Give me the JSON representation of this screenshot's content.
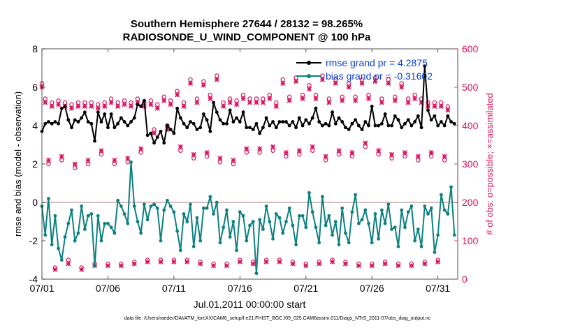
{
  "chart_data": {
    "type": "line",
    "title_line1": "Southern Hemisphere 27644 / 28132 = 98.265%",
    "title_line2": "RADIOSONDE_U_WIND_COMPONENT @ 100 hPa",
    "xlabel": "Jul.01,2011 00:00:00 start",
    "ylabel_left": "rmse and bias (model - observation)",
    "ylabel_right": "# of obs: o=possible; ×=assimilated",
    "footer": "data file: /Users/raeder/DAI/ATM_forcXX/CAM6_setup/f.e21.FHIST_BGC.f09_025.CAM6assim.011/Diags_NTrS_2011-07/obs_diag_output.nc",
    "xlim": [
      0,
      31.5
    ],
    "ylim_left": [
      -4,
      8
    ],
    "ylim_right": [
      0,
      600
    ],
    "x_ticks": [
      0,
      5,
      10,
      15,
      20,
      25,
      30
    ],
    "x_tick_labels": [
      "07/01",
      "07/06",
      "07/11",
      "07/16",
      "07/21",
      "07/26",
      "07/31"
    ],
    "y_ticks_left": [
      -4,
      -2,
      0,
      2,
      4,
      6,
      8
    ],
    "y_tick_labels_left": [
      "-4",
      "-2",
      "0",
      "2",
      "4",
      "6",
      "8"
    ],
    "y_ticks_right": [
      0,
      100,
      200,
      300,
      400,
      500,
      600
    ],
    "y_tick_labels_right": [
      "0",
      "100",
      "200",
      "300",
      "400",
      "500",
      "600"
    ],
    "colors": {
      "rmse": "#000000",
      "bias": "#0d8080",
      "obs": "#d6135e",
      "zero_line": "#c8a8a8",
      "legend_text": "#0a3fd6"
    },
    "legend": {
      "location": "top-right",
      "rmse_label": "rmse grand pr = 4.2875",
      "bias_label": "bias grand pr = -0.31602"
    },
    "x": [
      0.0,
      0.25,
      0.5,
      0.75,
      1.0,
      1.25,
      1.5,
      1.75,
      2.0,
      2.25,
      2.5,
      2.75,
      3.0,
      3.25,
      3.5,
      3.75,
      4.0,
      4.25,
      4.5,
      4.75,
      5.0,
      5.25,
      5.5,
      5.75,
      6.0,
      6.25,
      6.5,
      6.75,
      7.0,
      7.25,
      7.5,
      7.75,
      8.0,
      8.25,
      8.5,
      8.75,
      9.0,
      9.25,
      9.5,
      9.75,
      10.0,
      10.25,
      10.5,
      10.75,
      11.0,
      11.25,
      11.5,
      11.75,
      12.0,
      12.25,
      12.5,
      12.75,
      13.0,
      13.25,
      13.5,
      13.75,
      14.0,
      14.25,
      14.5,
      14.75,
      15.0,
      15.25,
      15.5,
      15.75,
      16.0,
      16.25,
      16.5,
      16.75,
      17.0,
      17.25,
      17.5,
      17.75,
      18.0,
      18.25,
      18.5,
      18.75,
      19.0,
      19.25,
      19.5,
      19.75,
      20.0,
      20.25,
      20.5,
      20.75,
      21.0,
      21.25,
      21.5,
      21.75,
      22.0,
      22.25,
      22.5,
      22.75,
      23.0,
      23.25,
      23.5,
      23.75,
      24.0,
      24.25,
      24.5,
      24.75,
      25.0,
      25.25,
      25.5,
      25.75,
      26.0,
      26.25,
      26.5,
      26.75,
      27.0,
      27.25,
      27.5,
      27.75,
      28.0,
      28.25,
      28.5,
      28.75,
      29.0,
      29.25,
      29.5,
      29.75,
      30.0,
      30.25,
      30.5,
      30.75,
      31.0,
      31.25
    ],
    "rmse": [
      3.7,
      4.1,
      4.2,
      4.1,
      4.2,
      4.1,
      4.9,
      5.0,
      4.3,
      3.9,
      4.3,
      4.2,
      4.4,
      4.7,
      4.2,
      4.1,
      3.2,
      4.7,
      4.2,
      4.6,
      3.9,
      4.6,
      3.9,
      4.1,
      4.4,
      4.2,
      4.0,
      4.2,
      4.4,
      5.1,
      5.0,
      5.3,
      3.5,
      3.6,
      3.1,
      3.4,
      3.7,
      3.1,
      4.0,
      3.8,
      3.6,
      4.9,
      4.4,
      4.1,
      3.9,
      4.2,
      4.1,
      3.8,
      3.9,
      4.6,
      4.3,
      3.7,
      5.2,
      4.7,
      4.3,
      4.1,
      4.1,
      4.8,
      4.2,
      4.4,
      4.2,
      4.7,
      3.9,
      3.9,
      3.8,
      4.1,
      3.6,
      3.9,
      4.4,
      4.0,
      4.2,
      3.9,
      4.2,
      4.2,
      4.2,
      4.0,
      4.2,
      3.9,
      4.4,
      4.0,
      4.3,
      4.1,
      4.4,
      4.9,
      4.2,
      4.0,
      4.1,
      4.0,
      4.7,
      4.1,
      4.4,
      4.2,
      3.9,
      3.8,
      4.1,
      4.3,
      4.0,
      3.8,
      4.2,
      4.0,
      5.0,
      4.0,
      4.0,
      4.1,
      4.6,
      4.0,
      4.0,
      4.5,
      4.3,
      3.9,
      4.1,
      4.3,
      4.0,
      4.2,
      4.5,
      3.9,
      7.1,
      4.8,
      4.3,
      4.5,
      4.0,
      4.2,
      4.0,
      4.5,
      4.2,
      4.1,
      3.9,
      4.4,
      4.1,
      3.8,
      4.2,
      3.9
    ],
    "bias": [
      -0.2,
      -1.7,
      0.2,
      -2.2,
      -0.7,
      -2.4,
      -3.0,
      -1.8,
      -1.1,
      -0.4,
      -2.0,
      -1.6,
      -0.2,
      -1.4,
      -0.7,
      -0.6,
      -3.3,
      -0.7,
      -2.0,
      -1.1,
      -1.1,
      -1.3,
      -1.6,
      0.1,
      -0.2,
      -0.6,
      -1.1,
      2.1,
      -0.2,
      -1.0,
      -1.6,
      -0.1,
      -0.9,
      -0.2,
      -0.1,
      -0.3,
      -2.0,
      -0.4,
      0.1,
      -0.2,
      -0.5,
      -1.5,
      -2.5,
      -0.6,
      -1.0,
      -0.1,
      -2.3,
      -0.8,
      -2.0,
      -0.3,
      -0.3,
      0.3,
      -0.6,
      0.0,
      -2.1,
      -1.3,
      -0.4,
      -1.8,
      -1.0,
      -2.5,
      -0.5,
      -0.7,
      -2.0,
      -1.2,
      -1.0,
      -3.7,
      -0.9,
      -1.4,
      -0.2,
      -1.0,
      -1.9,
      -0.6,
      -0.8,
      -1.6,
      -1.0,
      -0.3,
      -1.2,
      -2.2,
      -0.7,
      -0.7,
      -1.3,
      0.5,
      -0.5,
      -1.3,
      -2.1,
      0.3,
      -1.2,
      -0.7,
      -1.7,
      -1.0,
      -2.2,
      -0.3,
      -1.6,
      -2.1,
      -0.5,
      0.4,
      -1.1,
      -0.9,
      -0.4,
      -1.1,
      -2.1,
      -0.6,
      -1.9,
      -0.4,
      -1.1,
      -0.1,
      -1.4,
      -1.3,
      -2.3,
      -0.4,
      -1.3,
      -0.5,
      -0.2,
      -2.0,
      -1.4,
      -2.3,
      -0.2,
      -0.6,
      -0.3,
      -2.6,
      -1.7,
      0.4,
      -0.4,
      -0.6,
      0.8,
      -1.7,
      -0.2,
      -1.4,
      -0.6,
      -1.6,
      -1.9,
      0.5
    ],
    "obs_possible": [
      510,
      470,
      300,
      460,
      30,
      465,
      310,
      460,
      50,
      455,
      290,
      460,
      30,
      460,
      300,
      460,
      40,
      455,
      325,
      460,
      40,
      470,
      300,
      460,
      40,
      465,
      305,
      460,
      45,
      470,
      330,
      460,
      50,
      465,
      390,
      455,
      50,
      475,
      400,
      465,
      50,
      490,
      335,
      460,
      50,
      520,
      315,
      470,
      45,
      515,
      320,
      480,
      40,
      530,
      305,
      460,
      40,
      470,
      300,
      465,
      50,
      480,
      330,
      470,
      45,
      470,
      330,
      470,
      50,
      480,
      335,
      460,
      50,
      520,
      320,
      475,
      45,
      525,
      325,
      480,
      40,
      505,
      335,
      480,
      45,
      530,
      310,
      470,
      50,
      520,
      325,
      475,
      45,
      510,
      320,
      475,
      40,
      520,
      345,
      480,
      40,
      525,
      325,
      470,
      45,
      520,
      315,
      475,
      40,
      510,
      320,
      470,
      40,
      480,
      310,
      470,
      45,
      460,
      320,
      460,
      50,
      460,
      310,
      450
    ],
    "obs_assimilated": [
      500,
      460,
      310,
      450,
      25,
      455,
      320,
      450,
      40,
      445,
      300,
      450,
      25,
      450,
      310,
      450,
      35,
      445,
      335,
      450,
      35,
      460,
      310,
      450,
      35,
      455,
      315,
      450,
      40,
      460,
      340,
      450,
      45,
      455,
      380,
      445,
      45,
      465,
      390,
      455,
      45,
      480,
      345,
      450,
      45,
      510,
      325,
      460,
      40,
      505,
      330,
      470,
      35,
      520,
      315,
      450,
      35,
      460,
      310,
      455,
      45,
      470,
      340,
      460,
      40,
      460,
      340,
      460,
      45,
      470,
      345,
      450,
      45,
      510,
      330,
      465,
      40,
      515,
      335,
      470,
      35,
      495,
      345,
      470,
      40,
      520,
      320,
      460,
      45,
      510,
      335,
      465,
      40,
      500,
      330,
      465,
      35,
      510,
      355,
      470,
      35,
      515,
      335,
      460,
      40,
      510,
      325,
      465,
      35,
      500,
      330,
      460,
      35,
      470,
      320,
      460,
      40,
      450,
      330,
      450,
      45,
      450,
      320,
      440
    ]
  }
}
